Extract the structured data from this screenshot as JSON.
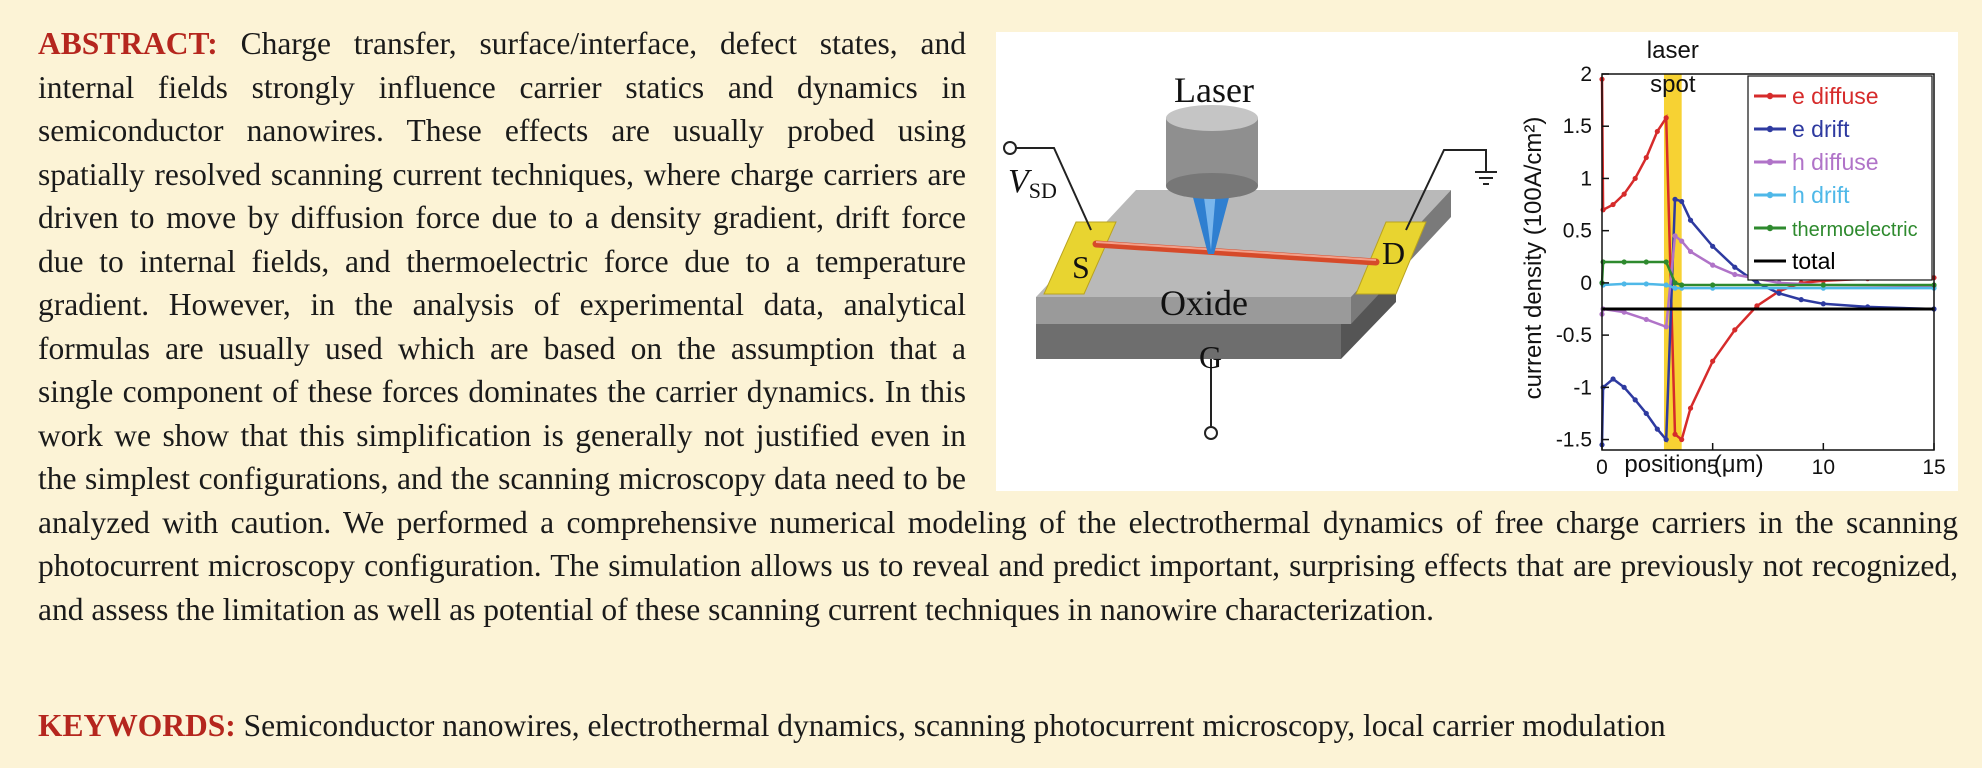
{
  "abstract": {
    "label": "ABSTRACT:",
    "text": "Charge transfer, surface/interface, defect states, and internal fields strongly influence carrier statics and dynamics in semiconductor nanowires. These effects are usually probed using spatially resolved scanning current techniques, where charge carriers are driven to move by diffusion force due to a density gradient, drift force due to internal fields, and thermoelectric force due to a temperature gradient. However, in the analysis of experimental data, analytical formulas are usually used which are based on the assumption that a single component of these forces dominates the carrier dynamics. In this work we show that this simplification is generally not justified even in the simplest configurations, and the scanning microscopy data need to be analyzed with caution. We performed a comprehensive numerical modeling of the electrothermal dynamics of free charge carriers in the scanning photocurrent microscopy configuration. The simulation allows us to reveal and predict important, surprising effects that are previously not recognized, and assess the limitation as well as potential of these scanning current techniques in nanowire characterization."
  },
  "keywords": {
    "label": "KEYWORDS:",
    "text": "Semiconductor nanowires, electrothermal dynamics, scanning photocurrent microscopy, local carrier modulation"
  },
  "diagram": {
    "laser": "Laser",
    "vsd": "V",
    "vsd_sub": "SD",
    "source": "S",
    "drain": "D",
    "oxide": "Oxide",
    "gate": "G"
  },
  "colors": {
    "label_red": "#b5261e",
    "background": "#fcf3d6",
    "electrode_yellow": "#e8d430",
    "laser_blue": "#2f7fd0",
    "nanowire_red": "#d64a2a",
    "laser_spot": "#f7d233"
  },
  "chart_data": {
    "type": "line",
    "xlabel": "position (μm)",
    "ylabel": "current density (100A/cm²)",
    "xlim": [
      0,
      15
    ],
    "ylim": [
      -1.6,
      2.0
    ],
    "x_ticks": [
      "0",
      "5",
      "10",
      "15"
    ],
    "y_ticks": [
      "2",
      "1.5",
      "1",
      "0.5",
      "0",
      "-0.5",
      "-1",
      "-1.5"
    ],
    "annotation": "laser spot",
    "laser_spot_range": [
      2.8,
      3.6
    ],
    "legend_position": "top-right",
    "series": [
      {
        "name": "e diffuse",
        "color": "#d62b2b",
        "x": [
          0,
          0.05,
          0.5,
          1,
          1.5,
          2,
          2.5,
          2.9,
          3.3,
          3.6,
          4,
          5,
          6,
          7,
          8,
          9,
          10,
          12,
          15
        ],
        "y": [
          1.95,
          0.7,
          0.75,
          0.85,
          1.0,
          1.2,
          1.45,
          1.58,
          -1.45,
          -1.5,
          -1.2,
          -0.75,
          -0.45,
          -0.22,
          -0.08,
          0.0,
          0.02,
          0.04,
          0.05
        ]
      },
      {
        "name": "e drift",
        "color": "#2e3aa0",
        "x": [
          0,
          0.05,
          0.5,
          1,
          1.5,
          2,
          2.5,
          2.9,
          3.3,
          3.6,
          4,
          5,
          6,
          7,
          8,
          9,
          10,
          12,
          15
        ],
        "y": [
          -1.55,
          -1.0,
          -0.92,
          -1.0,
          -1.12,
          -1.25,
          -1.4,
          -1.5,
          0.8,
          0.78,
          0.6,
          0.35,
          0.15,
          0.0,
          -0.1,
          -0.16,
          -0.2,
          -0.23,
          -0.25
        ]
      },
      {
        "name": "h diffuse",
        "color": "#b073c8",
        "x": [
          0,
          0.05,
          1,
          2,
          2.9,
          3.3,
          3.6,
          4,
          5,
          6,
          8,
          10,
          15
        ],
        "y": [
          -0.3,
          -0.25,
          -0.28,
          -0.35,
          -0.42,
          0.45,
          0.4,
          0.3,
          0.17,
          0.08,
          0.0,
          -0.02,
          -0.03
        ]
      },
      {
        "name": "h drift",
        "color": "#4fb8e8",
        "x": [
          0,
          0.05,
          1,
          2,
          2.9,
          3.3,
          3.6,
          5,
          10,
          15
        ],
        "y": [
          0.0,
          -0.02,
          -0.01,
          -0.01,
          -0.02,
          -0.05,
          -0.05,
          -0.05,
          -0.05,
          -0.05
        ]
      },
      {
        "name": "thermoelectric",
        "color": "#2e8a2e",
        "x": [
          0,
          0.05,
          1,
          2,
          2.9,
          3.3,
          3.6,
          5,
          10,
          15
        ],
        "y": [
          0.0,
          0.2,
          0.2,
          0.2,
          0.2,
          0.0,
          -0.02,
          -0.02,
          -0.02,
          -0.02
        ]
      },
      {
        "name": "total",
        "color": "#000000",
        "x": [
          0,
          15
        ],
        "y": [
          -0.25,
          -0.25
        ]
      }
    ]
  }
}
